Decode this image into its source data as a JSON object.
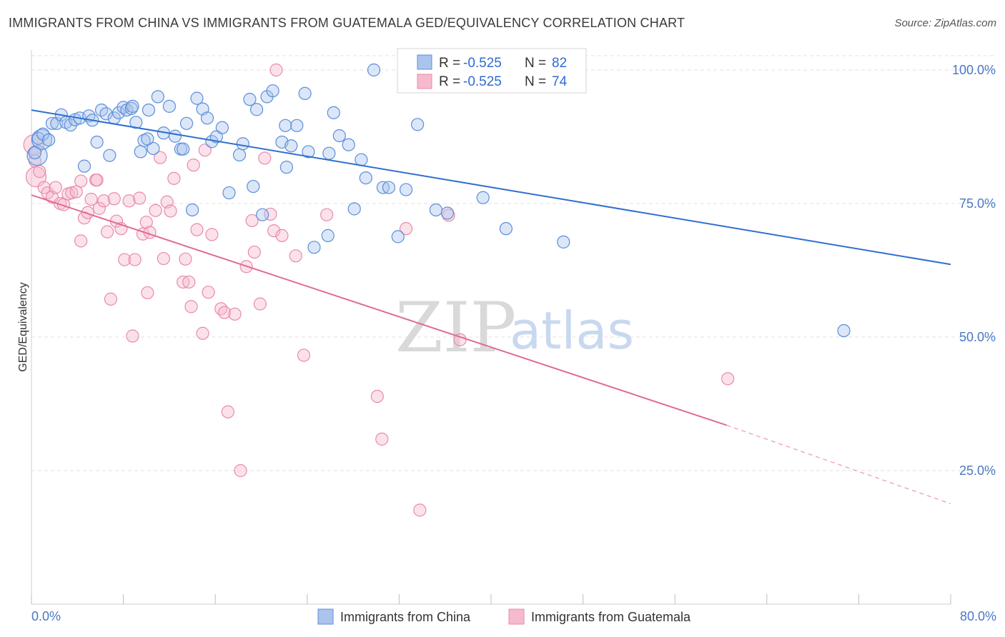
{
  "title": "IMMIGRANTS FROM CHINA VS IMMIGRANTS FROM GUATEMALA GED/EQUIVALENCY CORRELATION CHART",
  "source": "Source: ZipAtlas.com",
  "watermark": {
    "zip": "ZIP",
    "atlas": "atlas"
  },
  "colors": {
    "china_fill": "#aac4ee",
    "china_stroke": "#5b8fd8",
    "china_line": "#2f6fd0",
    "guatemala_fill": "#f6b9cd",
    "guatemala_stroke": "#e98aab",
    "guatemala_line": "#e06b94",
    "grid": "#e2e2e2",
    "axis_text": "#4a78c4"
  },
  "legend": {
    "rows": [
      {
        "r_label": "R = ",
        "r_value": "-0.525",
        "n_label": "N = ",
        "n_value": "82"
      },
      {
        "r_label": "R = ",
        "r_value": "-0.525",
        "n_label": "N = ",
        "n_value": "74"
      }
    ]
  },
  "chart_data": {
    "type": "scatter",
    "title": "IMMIGRANTS FROM CHINA VS IMMIGRANTS FROM GUATEMALA GED/EQUIVALENCY CORRELATION CHART",
    "xlabel": "",
    "ylabel": "GED/Equivalency",
    "xlim": [
      0,
      80
    ],
    "ylim": [
      0,
      105
    ],
    "x_tick_labels": [
      "0.0%",
      "80.0%"
    ],
    "y_ticks": [
      25,
      50,
      75,
      100
    ],
    "y_tick_labels": [
      "25.0%",
      "50.0%",
      "75.0%",
      "100.0%"
    ],
    "grid": true,
    "legend_placement": "top-center",
    "series": [
      {
        "name": "Immigrants from China",
        "color": "#aac4ee",
        "trend": {
          "x": [
            0,
            80
          ],
          "y": [
            92.5,
            63.6
          ],
          "dashed_from": null
        },
        "points": [
          [
            0.3,
            84.5
          ],
          [
            0.6,
            87.2
          ],
          [
            1.0,
            88.0
          ],
          [
            1.5,
            86.9
          ],
          [
            1.8,
            90.0
          ],
          [
            2.2,
            90.0
          ],
          [
            2.6,
            91.6
          ],
          [
            3.0,
            90.2
          ],
          [
            3.4,
            89.7
          ],
          [
            3.8,
            90.7
          ],
          [
            4.2,
            91.0
          ],
          [
            4.6,
            82.0
          ],
          [
            5.0,
            91.4
          ],
          [
            5.3,
            90.6
          ],
          [
            5.7,
            86.5
          ],
          [
            6.1,
            92.5
          ],
          [
            6.5,
            91.8
          ],
          [
            6.8,
            84.0
          ],
          [
            7.2,
            91.0
          ],
          [
            7.6,
            92.0
          ],
          [
            8.0,
            93.0
          ],
          [
            8.3,
            92.5
          ],
          [
            8.7,
            92.8
          ],
          [
            9.1,
            90.2
          ],
          [
            9.5,
            84.7
          ],
          [
            9.8,
            86.8
          ],
          [
            10.2,
            92.5
          ],
          [
            10.6,
            85.3
          ],
          [
            11.0,
            95.0
          ],
          [
            11.5,
            88.2
          ],
          [
            12.0,
            93.2
          ],
          [
            12.5,
            87.6
          ],
          [
            13.0,
            85.2
          ],
          [
            13.5,
            90.0
          ],
          [
            14.0,
            73.8
          ],
          [
            14.4,
            94.7
          ],
          [
            14.9,
            92.7
          ],
          [
            15.3,
            91.0
          ],
          [
            15.7,
            86.6
          ],
          [
            16.1,
            87.5
          ],
          [
            16.6,
            89.2
          ],
          [
            17.2,
            77.0
          ],
          [
            18.1,
            84.1
          ],
          [
            18.4,
            86.2
          ],
          [
            19.0,
            94.5
          ],
          [
            19.3,
            78.2
          ],
          [
            19.6,
            92.6
          ],
          [
            20.1,
            72.9
          ],
          [
            20.5,
            95.0
          ],
          [
            21.0,
            96.1
          ],
          [
            21.8,
            86.5
          ],
          [
            22.1,
            89.6
          ],
          [
            22.6,
            85.8
          ],
          [
            22.2,
            81.8
          ],
          [
            23.1,
            89.6
          ],
          [
            23.8,
            95.6
          ],
          [
            24.6,
            66.8
          ],
          [
            25.8,
            69.0
          ],
          [
            25.9,
            84.4
          ],
          [
            26.3,
            92.0
          ],
          [
            26.8,
            87.7
          ],
          [
            27.6,
            86.0
          ],
          [
            28.1,
            74.0
          ],
          [
            28.7,
            83.2
          ],
          [
            29.1,
            79.8
          ],
          [
            29.8,
            100.0
          ],
          [
            30.6,
            78.0
          ],
          [
            31.1,
            78.0
          ],
          [
            31.9,
            68.8
          ],
          [
            32.6,
            77.6
          ],
          [
            33.1,
            100.0
          ],
          [
            33.6,
            89.8
          ],
          [
            35.2,
            73.8
          ],
          [
            36.2,
            73.2
          ],
          [
            39.3,
            76.1
          ],
          [
            41.3,
            70.3
          ],
          [
            46.3,
            67.8
          ],
          [
            70.7,
            51.2
          ],
          [
            8.8,
            93.2
          ],
          [
            13.2,
            85.2
          ],
          [
            24.1,
            84.7
          ],
          [
            10.1,
            87.1
          ]
        ],
        "large_points": [
          [
            0.5,
            84.0
          ],
          [
            0.9,
            87.0
          ]
        ]
      },
      {
        "name": "Immigrants from Guatemala",
        "color": "#f6b9cd",
        "trend": {
          "x": [
            0,
            60.5,
            80
          ],
          "y": [
            76.6,
            33.5,
            18.8
          ],
          "dashed_from": 60.5
        },
        "points": [
          [
            0.3,
            83.0
          ],
          [
            0.7,
            81.0
          ],
          [
            1.1,
            78.0
          ],
          [
            1.4,
            77.0
          ],
          [
            1.8,
            76.2
          ],
          [
            2.1,
            78.0
          ],
          [
            2.5,
            75.0
          ],
          [
            2.8,
            74.8
          ],
          [
            3.2,
            76.8
          ],
          [
            3.5,
            77.0
          ],
          [
            3.9,
            77.2
          ],
          [
            4.3,
            79.2
          ],
          [
            4.3,
            68.0
          ],
          [
            4.6,
            72.3
          ],
          [
            4.9,
            73.3
          ],
          [
            5.2,
            75.8
          ],
          [
            5.6,
            79.4
          ],
          [
            5.9,
            74.1
          ],
          [
            6.3,
            75.5
          ],
          [
            6.6,
            69.7
          ],
          [
            6.9,
            57.1
          ],
          [
            7.2,
            75.9
          ],
          [
            7.4,
            71.7
          ],
          [
            7.8,
            70.3
          ],
          [
            8.1,
            64.5
          ],
          [
            8.5,
            75.5
          ],
          [
            8.8,
            50.2
          ],
          [
            9.0,
            64.5
          ],
          [
            9.4,
            76.0
          ],
          [
            9.7,
            69.3
          ],
          [
            10.0,
            71.5
          ],
          [
            10.3,
            69.6
          ],
          [
            10.1,
            58.3
          ],
          [
            10.8,
            73.7
          ],
          [
            11.2,
            83.6
          ],
          [
            11.5,
            64.7
          ],
          [
            11.8,
            75.3
          ],
          [
            12.1,
            73.6
          ],
          [
            12.4,
            79.7
          ],
          [
            13.2,
            60.3
          ],
          [
            13.4,
            64.6
          ],
          [
            13.7,
            60.3
          ],
          [
            13.9,
            55.7
          ],
          [
            14.1,
            82.2
          ],
          [
            14.4,
            70.1
          ],
          [
            14.9,
            50.7
          ],
          [
            15.1,
            85.0
          ],
          [
            15.4,
            58.4
          ],
          [
            15.7,
            69.2
          ],
          [
            16.5,
            55.3
          ],
          [
            16.8,
            54.6
          ],
          [
            17.1,
            36.0
          ],
          [
            17.7,
            54.3
          ],
          [
            18.2,
            25.0
          ],
          [
            18.7,
            63.2
          ],
          [
            19.2,
            71.8
          ],
          [
            19.4,
            65.9
          ],
          [
            19.9,
            56.2
          ],
          [
            20.3,
            83.5
          ],
          [
            20.8,
            73.0
          ],
          [
            21.1,
            69.9
          ],
          [
            21.3,
            100.0
          ],
          [
            21.8,
            69.0
          ],
          [
            23.0,
            65.2
          ],
          [
            23.7,
            46.6
          ],
          [
            25.7,
            72.9
          ],
          [
            30.1,
            38.9
          ],
          [
            30.5,
            30.9
          ],
          [
            32.6,
            70.3
          ],
          [
            33.8,
            17.6
          ],
          [
            36.3,
            72.8
          ],
          [
            37.3,
            49.5
          ],
          [
            60.6,
            42.2
          ],
          [
            5.7,
            79.4
          ]
        ],
        "large_points": [
          [
            0.2,
            86.0
          ],
          [
            0.4,
            80.0
          ]
        ]
      }
    ]
  },
  "bottom_legend": [
    {
      "label": "Immigrants from China"
    },
    {
      "label": "Immigrants from Guatemala"
    }
  ]
}
